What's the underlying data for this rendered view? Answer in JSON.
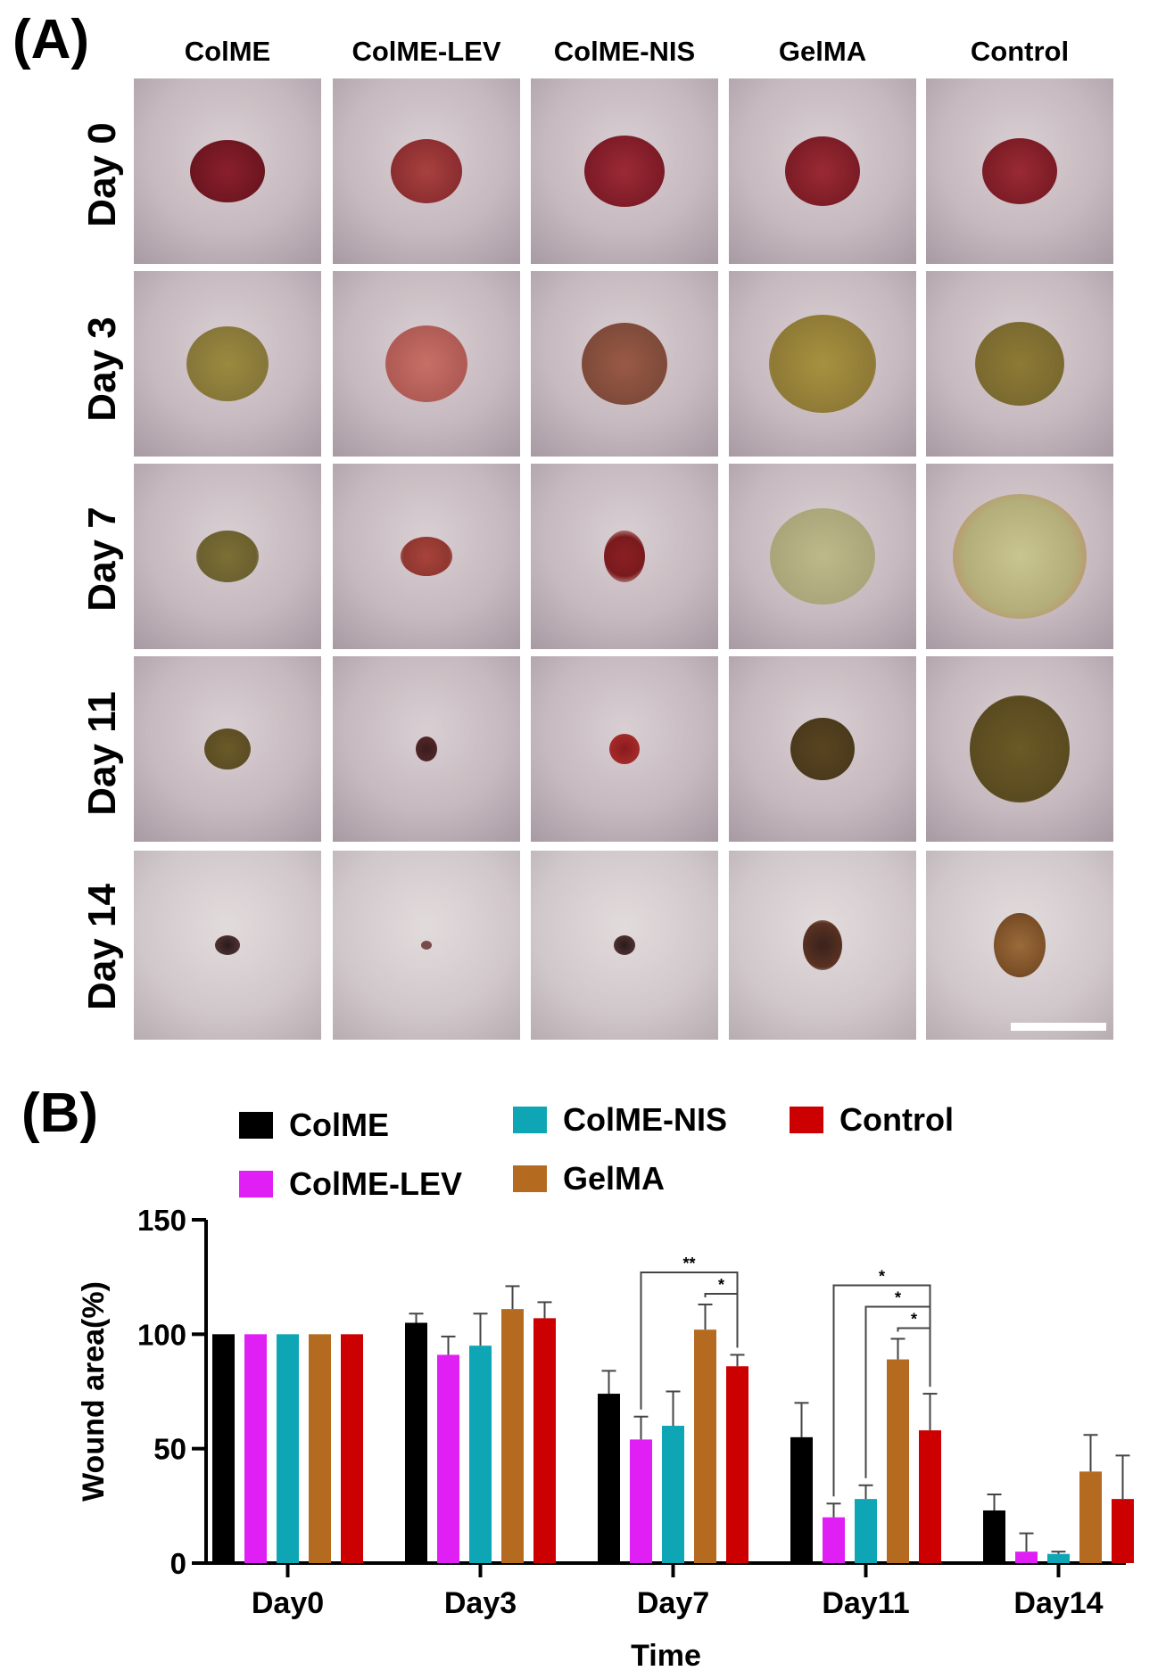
{
  "figure": {
    "panel_a_label": "(A)",
    "panel_b_label": "(B)"
  },
  "photo_grid": {
    "columns": [
      "ColME",
      "ColME-LEV",
      "ColME-NIS",
      "GelMA",
      "Control"
    ],
    "rows": [
      "Day 0",
      "Day 3",
      "Day 7",
      "Day 11",
      "Day 14"
    ]
  },
  "chart_data": {
    "type": "bar",
    "xlabel": "Time",
    "ylabel": "Wound area(%)",
    "ylim": [
      0,
      150
    ],
    "yticks": [
      0,
      50,
      100,
      150
    ],
    "categories": [
      "Day0",
      "Day3",
      "Day7",
      "Day11",
      "Day14"
    ],
    "series": [
      {
        "name": "ColME",
        "color": "#000000",
        "values": [
          100,
          105,
          74,
          55,
          23
        ],
        "errors": [
          0,
          4,
          10,
          15,
          7
        ]
      },
      {
        "name": "ColME-LEV",
        "color": "#e01ff5",
        "values": [
          100,
          91,
          54,
          20,
          5
        ],
        "errors": [
          0,
          8,
          10,
          6,
          8
        ]
      },
      {
        "name": "ColME-NIS",
        "color": "#0ea5b5",
        "values": [
          100,
          95,
          60,
          28,
          4
        ],
        "errors": [
          0,
          14,
          15,
          6,
          1
        ]
      },
      {
        "name": "GelMA",
        "color": "#b56b1f",
        "values": [
          100,
          111,
          102,
          89,
          40
        ],
        "errors": [
          0,
          10,
          11,
          9,
          16
        ]
      },
      {
        "name": "Control",
        "color": "#cc0000",
        "values": [
          100,
          107,
          86,
          58,
          28
        ],
        "errors": [
          0,
          7,
          5,
          16,
          19
        ]
      }
    ],
    "significance": [
      {
        "category": "Day7",
        "from_series": "ColME-LEV",
        "to_series": "Control",
        "label": "**"
      },
      {
        "category": "Day7",
        "from_series": "GelMA",
        "to_series": "Control",
        "label": "*"
      },
      {
        "category": "Day11",
        "from_series": "ColME-LEV",
        "to_series": "Control",
        "label": "*"
      },
      {
        "category": "Day11",
        "from_series": "ColME-NIS",
        "to_series": "Control",
        "label": "*"
      },
      {
        "category": "Day11",
        "from_series": "GelMA",
        "to_series": "Control",
        "label": "*"
      }
    ]
  }
}
